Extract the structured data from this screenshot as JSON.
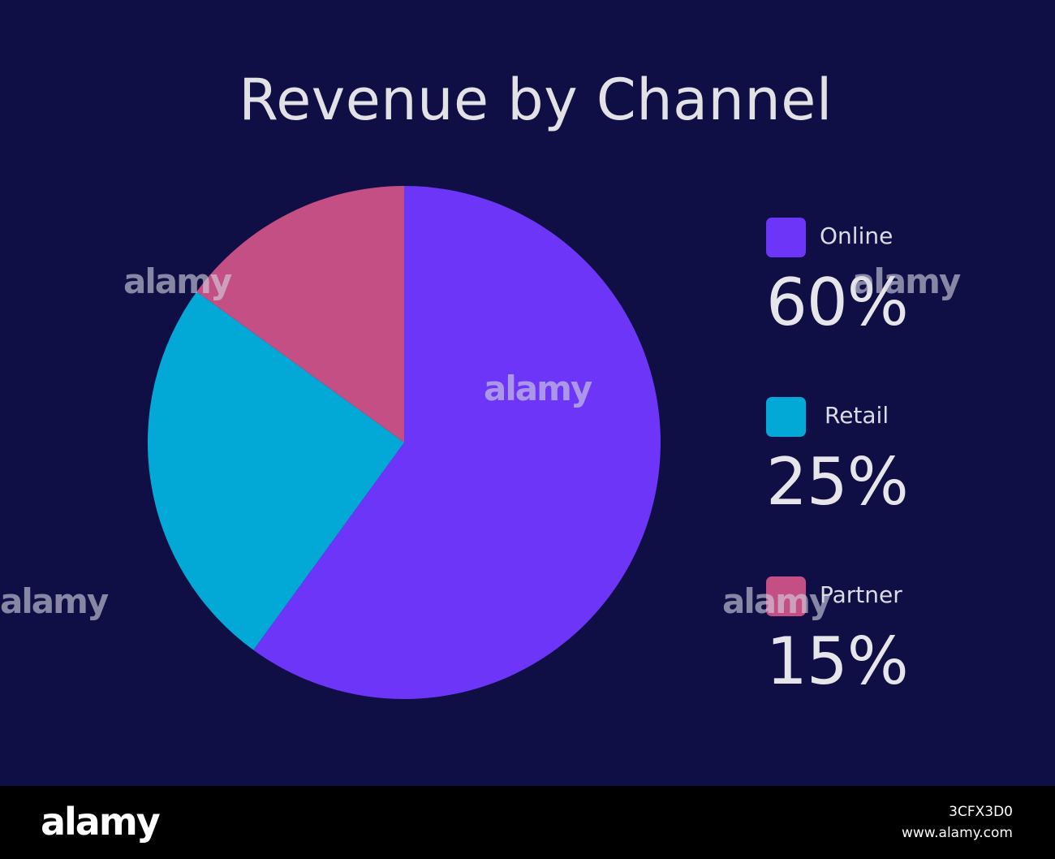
{
  "chart_data": {
    "type": "pie",
    "title": "Revenue by Channel",
    "slices": [
      {
        "label": "Online",
        "value": 60,
        "value_label": "60%",
        "color": "#6c35f7"
      },
      {
        "label": "Retail",
        "value": 25,
        "value_label": "25%",
        "color": "#03a9d6"
      },
      {
        "label": "Partner",
        "value": 15,
        "value_label": "15%",
        "color": "#c34f85"
      }
    ],
    "legend_placement": "right"
  },
  "watermark": {
    "logo_text": "alamy",
    "image_id": "3CFX3D0",
    "url": "www.alamy.com"
  },
  "colors": {
    "background": "#0f0e45",
    "text": "#e2e2e6"
  }
}
